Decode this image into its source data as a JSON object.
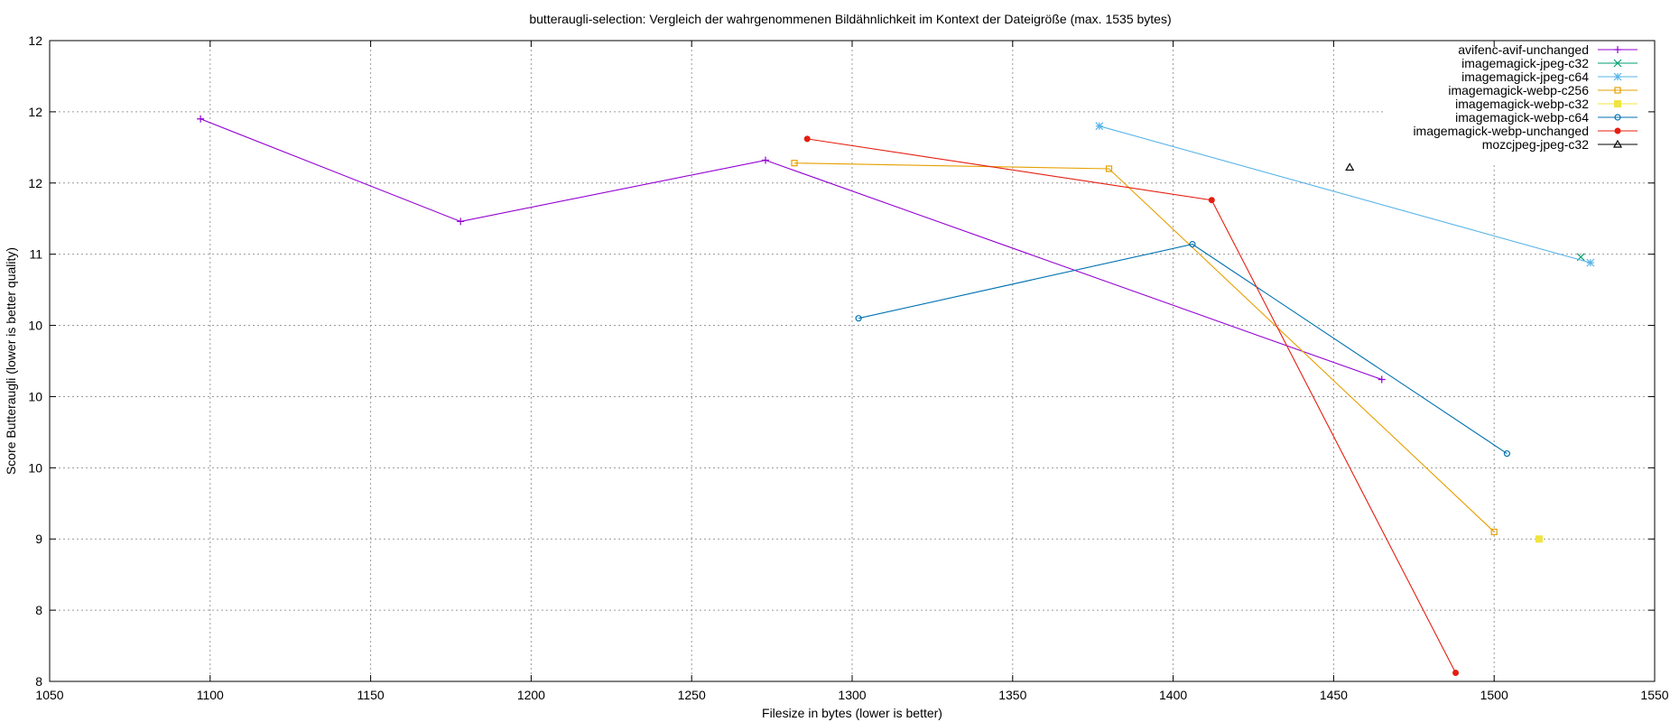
{
  "chart_data": {
    "type": "line",
    "title": "butteraugli-selection: Vergleich der wahrgenommenen Bildähnlichkeit im Kontext der Dateigröße (max. 1535 bytes)",
    "xlabel": "Filesize in bytes (lower is better)",
    "ylabel": "Score Butteraugli (lower is better quality)",
    "xlim": [
      1050,
      1550
    ],
    "ylim": [
      8,
      12.5
    ],
    "grid": true,
    "legend_position": "top-right",
    "x_ticks": [
      1050,
      1100,
      1150,
      1200,
      1250,
      1300,
      1350,
      1400,
      1450,
      1500,
      1550
    ],
    "y_ticks": [
      {
        "value": 8,
        "label": "8"
      },
      {
        "value": 8.5,
        "label": "8"
      },
      {
        "value": 9,
        "label": "9"
      },
      {
        "value": 9.5,
        "label": "10"
      },
      {
        "value": 10,
        "label": "10"
      },
      {
        "value": 10.5,
        "label": "10"
      },
      {
        "value": 11,
        "label": "11"
      },
      {
        "value": 11.5,
        "label": "12"
      },
      {
        "value": 12,
        "label": "12"
      },
      {
        "value": 12.5,
        "label": "12"
      }
    ],
    "series": [
      {
        "name": "avifenc-avif-unchanged",
        "color": "#9400d3",
        "marker": "plus",
        "points": [
          [
            1097,
            11.95
          ],
          [
            1178,
            11.23
          ],
          [
            1273,
            11.66
          ],
          [
            1465,
            10.12
          ]
        ]
      },
      {
        "name": "imagemagick-jpeg-c32",
        "color": "#009e73",
        "marker": "cross",
        "points": [
          [
            1527,
            10.98
          ]
        ]
      },
      {
        "name": "imagemagick-jpeg-c64",
        "color": "#56b4e9",
        "marker": "asterisk",
        "points": [
          [
            1377,
            11.9
          ],
          [
            1530,
            10.94
          ]
        ]
      },
      {
        "name": "imagemagick-webp-c256",
        "color": "#e69f00",
        "marker": "open-square",
        "points": [
          [
            1282,
            11.64
          ],
          [
            1380,
            11.6
          ],
          [
            1500,
            9.05
          ]
        ]
      },
      {
        "name": "imagemagick-webp-c32",
        "color": "#f0e442",
        "marker": "filled-square",
        "points": [
          [
            1514,
            9.0
          ]
        ]
      },
      {
        "name": "imagemagick-webp-c64",
        "color": "#0072b2",
        "marker": "open-circle",
        "points": [
          [
            1302,
            10.55
          ],
          [
            1406,
            11.07
          ],
          [
            1504,
            9.6
          ]
        ]
      },
      {
        "name": "imagemagick-webp-unchanged",
        "color": "#e51e10",
        "marker": "filled-circle",
        "points": [
          [
            1286,
            11.81
          ],
          [
            1412,
            11.38
          ],
          [
            1488,
            8.06
          ]
        ]
      },
      {
        "name": "mozcjpeg-jpeg-c32",
        "color": "#000000",
        "marker": "open-triangle",
        "points": [
          [
            1455,
            11.61
          ]
        ]
      }
    ]
  }
}
